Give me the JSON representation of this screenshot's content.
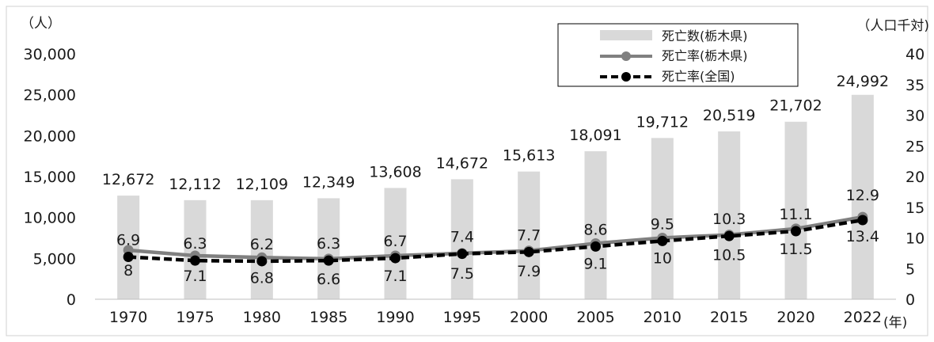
{
  "chart_data": {
    "type": "bar",
    "y_left_unit": "（人）",
    "y_right_unit": "（人口千対)",
    "x_unit": "(年)",
    "categories": [
      "1970",
      "1975",
      "1980",
      "1985",
      "1990",
      "1995",
      "2000",
      "2005",
      "2010",
      "2015",
      "2020",
      "2022"
    ],
    "y_left_ticks": [
      "0",
      "5,000",
      "10,000",
      "15,000",
      "20,000",
      "25,000",
      "30,000"
    ],
    "y_right_ticks": [
      "0",
      "5",
      "10",
      "15",
      "20",
      "25",
      "30",
      "35",
      "40"
    ],
    "y_left_range": [
      0,
      30000
    ],
    "y_right_range": [
      0,
      40
    ],
    "grid": false,
    "legend_position": "top-right",
    "colors": {
      "bar": "#d9d9d9",
      "tochigi_line": "#808080",
      "national_line": "#000000"
    },
    "series": [
      {
        "name": "死亡数(栃木県)",
        "axis": "left",
        "kind": "bar",
        "values": [
          12672,
          12112,
          12109,
          12349,
          13608,
          14672,
          15613,
          18091,
          19712,
          20519,
          21702,
          24992
        ],
        "labels": [
          "12,672",
          "12,112",
          "12,109",
          "12,349",
          "13,608",
          "14,672",
          "15,613",
          "18,091",
          "19,712",
          "20,519",
          "21,702",
          "24,992"
        ]
      },
      {
        "name": "死亡率(栃木県)",
        "axis": "right",
        "kind": "line",
        "values": [
          8,
          7.1,
          6.8,
          6.6,
          7.1,
          7.5,
          7.9,
          9.1,
          10,
          10.5,
          11.5,
          13.4
        ],
        "labels": [
          "8",
          "7.1",
          "6.8",
          "6.6",
          "7.1",
          "7.5",
          "7.9",
          "9.1",
          "10",
          "10.5",
          "11.5",
          "13.4"
        ]
      },
      {
        "name": "死亡率(全国)",
        "axis": "right",
        "kind": "line-dashed",
        "values": [
          6.9,
          6.3,
          6.2,
          6.3,
          6.7,
          7.4,
          7.7,
          8.6,
          9.5,
          10.3,
          11.1,
          12.9
        ],
        "labels": [
          "6.9",
          "6.3",
          "6.2",
          "6.3",
          "6.7",
          "7.4",
          "7.7",
          "8.6",
          "9.5",
          "10.3",
          "11.1",
          "12.9"
        ]
      }
    ]
  }
}
